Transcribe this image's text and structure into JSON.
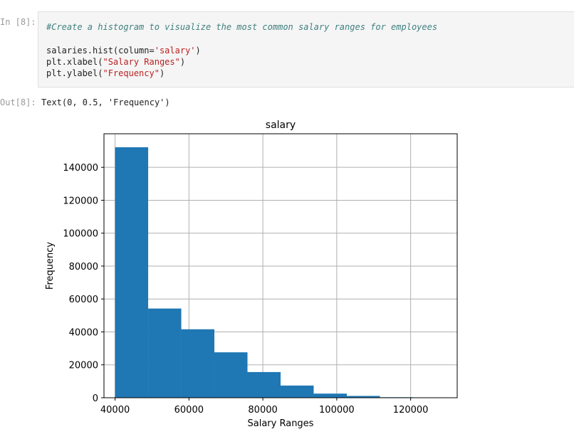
{
  "cell": {
    "in_prompt": "In [8]:",
    "code": {
      "comment": "#Create a histogram to visualize the most common salary ranges for employees",
      "line1_pre": "salaries.hist(column=",
      "line1_str": "'salary'",
      "line1_post": ")",
      "line2_pre": "plt.xlabel(",
      "line2_str": "\"Salary Ranges\"",
      "line2_post": ")",
      "line3_pre": "plt.ylabel(",
      "line3_str": "\"Frequency\"",
      "line3_post": ")"
    },
    "out_prompt": "Out[8]:",
    "out_text": "Text(0, 0.5, 'Frequency')"
  },
  "chart_data": {
    "type": "bar",
    "title": "salary",
    "xlabel": "Salary Ranges",
    "ylabel": "Frequency",
    "xlim": [
      37000,
      132600
    ],
    "ylim": [
      0,
      160400
    ],
    "bin_edges": [
      40000,
      48960,
      57919,
      66879,
      75838,
      84798,
      93757,
      102717,
      111676,
      120636,
      129595
    ],
    "values": [
      152200,
      54200,
      41600,
      27600,
      15600,
      7400,
      2500,
      1100,
      300,
      100
    ],
    "xticks": [
      40000,
      60000,
      80000,
      100000,
      120000
    ],
    "xtick_labels": [
      "40000",
      "60000",
      "80000",
      "100000",
      "120000"
    ],
    "yticks": [
      0,
      20000,
      40000,
      60000,
      80000,
      100000,
      120000,
      140000
    ],
    "ytick_labels": [
      "0",
      "20000",
      "40000",
      "60000",
      "80000",
      "100000",
      "120000",
      "140000"
    ],
    "grid": true,
    "bar_color": "#1f77b4",
    "grid_color": "#b0b0b0"
  }
}
